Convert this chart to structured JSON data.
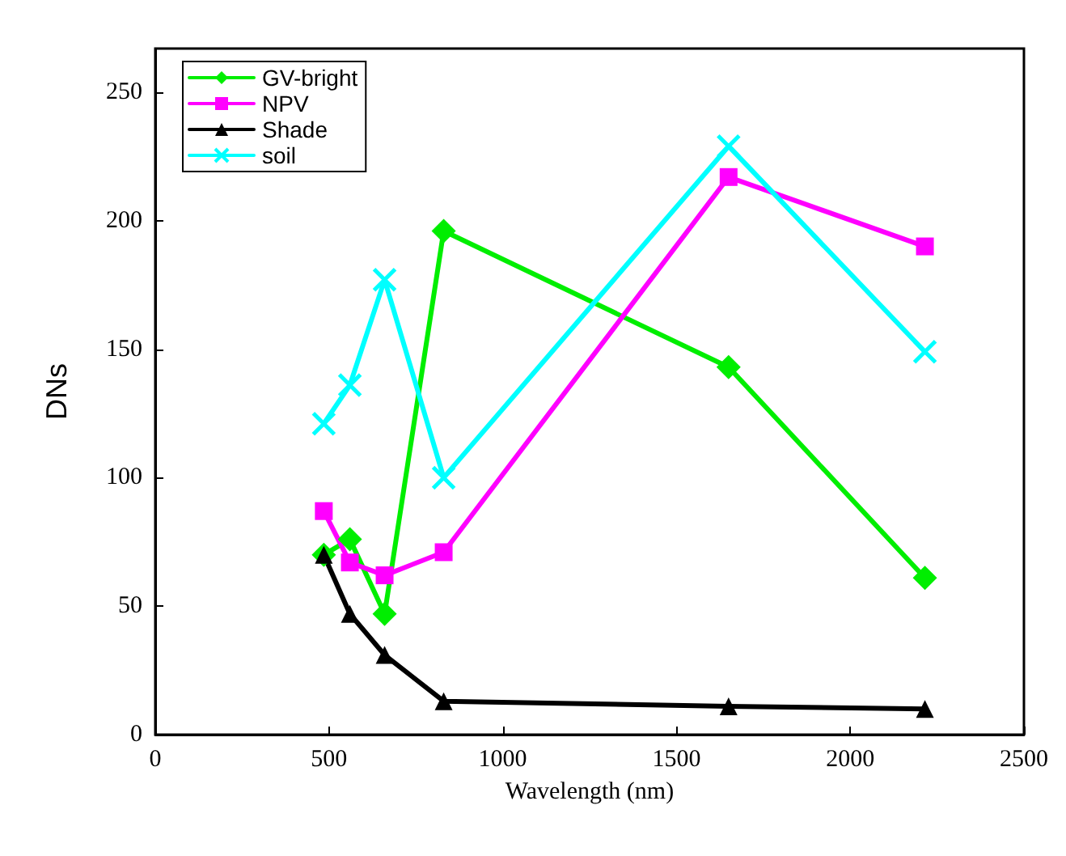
{
  "chart_data": {
    "type": "line",
    "xlabel": "Wavelength (nm)",
    "ylabel": "DNs",
    "xlim": [
      0,
      2500
    ],
    "xticks": [
      0,
      500,
      1000,
      1500,
      2000,
      2500
    ],
    "ylim": [
      0,
      267
    ],
    "yticks": [
      0,
      50,
      100,
      150,
      200,
      250
    ],
    "grid": false,
    "legend": "top left",
    "line_style": "solid",
    "x": [
      485,
      560,
      660,
      830,
      1650,
      2215
    ],
    "series": [
      {
        "name": "GV-bright",
        "color": "#00ee00",
        "marker": "diamond",
        "values": [
          70,
          76,
          47,
          196,
          143,
          61
        ]
      },
      {
        "name": "NPV",
        "color": "#ff00ff",
        "marker": "square",
        "values": [
          87,
          67,
          62,
          71,
          217,
          190
        ]
      },
      {
        "name": "Shade",
        "color": "#000000",
        "marker": "triangle",
        "values": [
          70,
          47,
          31,
          13,
          11,
          10
        ]
      },
      {
        "name": "soil",
        "color": "#00ffff",
        "marker": "cross",
        "values": [
          121,
          136,
          177,
          100,
          229,
          149
        ]
      }
    ]
  }
}
